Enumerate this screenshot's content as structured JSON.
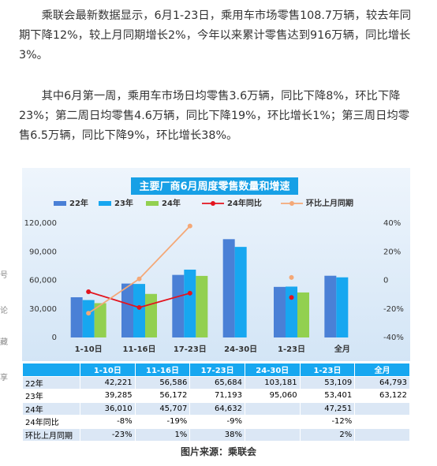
{
  "article": {
    "paragraphs": [
      "乘联会最新数据显示，6月1-23日，乘用车市场零售108.7万辆，较去年同期下降12%，较上月同期增长2%，今年以来累计零售达到916万辆，同比增长3%。",
      "其中6月第一周，乘用车市场日均零售3.6万辆，同比下降8%，环比下降23%；第二周日均零售4.6万辆，同比下降19%，环比增长1%；第三周日均零售6.5万辆，同比下降9%，环比增长38%。"
    ],
    "caption": "图片来源：乘联会"
  },
  "sidebar": {
    "labels": [
      "号",
      "论",
      "藏",
      "享"
    ]
  },
  "chart_data": {
    "type": "bar",
    "title": "主要厂商6月周度零售数量和增速",
    "categories": [
      "1-10日",
      "11-16日",
      "17-23日",
      "24-30日",
      "1-23日",
      "全月"
    ],
    "series": [
      {
        "name": "22年",
        "color": "#4a80d6",
        "values": [
          42221,
          56586,
          65684,
          103181,
          53109,
          64793
        ],
        "value_labels": [
          "42,221",
          "56,586",
          "65,684",
          "103,181",
          "53,109",
          "64,793"
        ]
      },
      {
        "name": "23年",
        "color": "#17a7f0",
        "values": [
          39285,
          56172,
          71193,
          95060,
          53401,
          63122
        ],
        "value_labels": [
          "39,285",
          "56,172",
          "71,193",
          "95,060",
          "53,401",
          "63,122"
        ]
      },
      {
        "name": "24年",
        "color": "#92d050",
        "values": [
          36010,
          45707,
          64632,
          null,
          47251,
          null
        ],
        "value_labels": [
          "36,010",
          "45,707",
          "64,632",
          null,
          "47,251",
          null
        ]
      },
      {
        "name": "24年同比",
        "type": "line",
        "axis": "y2",
        "color": "#e3141e",
        "values": [
          -8,
          -19,
          -9,
          null,
          -12,
          null
        ],
        "value_labels": [
          "-8%",
          "-19%",
          "-9%",
          null,
          "-12%",
          null
        ]
      },
      {
        "name": "环比上月同期",
        "type": "line",
        "axis": "y2",
        "color": "#f4a877",
        "values": [
          -23,
          1,
          38,
          null,
          2,
          null
        ],
        "value_labels": [
          "-23%",
          "1%",
          "38%",
          null,
          "2%",
          null
        ]
      }
    ],
    "ylim": [
      0,
      120000
    ],
    "yticks": [
      0,
      {
        "value": 30000,
        "label": "30,000"
      },
      {
        "value": 60000,
        "label": "60,000"
      },
      {
        "value": 90000,
        "label": "90,000"
      },
      {
        "value": 120000,
        "label": "120,000"
      }
    ],
    "y2lim": [
      -40,
      40
    ],
    "y2ticks": [
      {
        "value": -40,
        "label": "-40%"
      },
      {
        "value": -20,
        "label": "-20%"
      },
      0,
      {
        "value": 20,
        "label": "20%"
      },
      {
        "value": 40,
        "label": "40%"
      }
    ],
    "grid": false
  }
}
